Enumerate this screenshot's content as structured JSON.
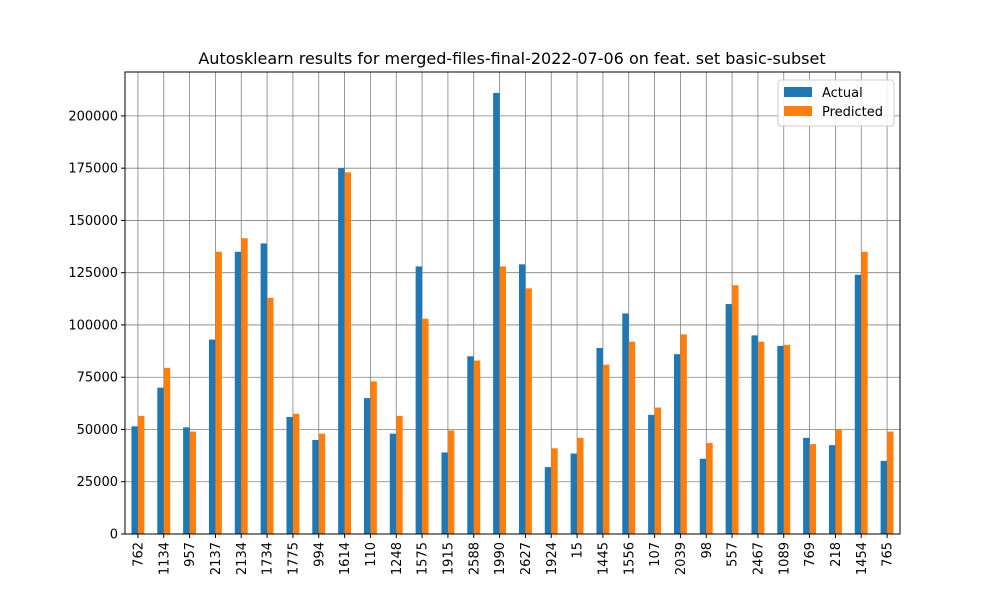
{
  "chart_data": {
    "type": "bar",
    "title": "Autosklearn results for merged-files-final-2022-07-06 on feat. set basic-subset",
    "xlabel": "",
    "ylabel": "",
    "ylim": [
      0,
      221000
    ],
    "yticks": [
      0,
      25000,
      50000,
      75000,
      100000,
      125000,
      150000,
      175000,
      200000
    ],
    "grid": true,
    "legend_position": "top-right",
    "categories": [
      "762",
      "1134",
      "957",
      "2137",
      "2134",
      "1734",
      "1775",
      "994",
      "1614",
      "110",
      "1248",
      "1575",
      "1915",
      "2588",
      "1990",
      "2627",
      "1924",
      "15",
      "1445",
      "1556",
      "107",
      "2039",
      "98",
      "557",
      "2467",
      "1089",
      "769",
      "218",
      "1454",
      "765"
    ],
    "series": [
      {
        "name": "Actual",
        "color": "#1f77b4",
        "values": [
          51500,
          70000,
          51000,
          93000,
          135000,
          139000,
          56000,
          45000,
          175000,
          65000,
          48000,
          128000,
          39000,
          85000,
          211000,
          129000,
          32000,
          38500,
          89000,
          105500,
          57000,
          86000,
          36000,
          110000,
          95000,
          90000,
          46000,
          42500,
          124000,
          35000
        ]
      },
      {
        "name": "Predicted",
        "color": "#ff7f0e",
        "values": [
          56500,
          79500,
          49000,
          135000,
          141500,
          113000,
          57500,
          48000,
          173000,
          73000,
          56500,
          103000,
          49500,
          83000,
          128000,
          117500,
          41000,
          46000,
          81000,
          92000,
          60500,
          95500,
          43500,
          119000,
          92000,
          90500,
          43000,
          50000,
          135000,
          49000
        ]
      }
    ]
  }
}
